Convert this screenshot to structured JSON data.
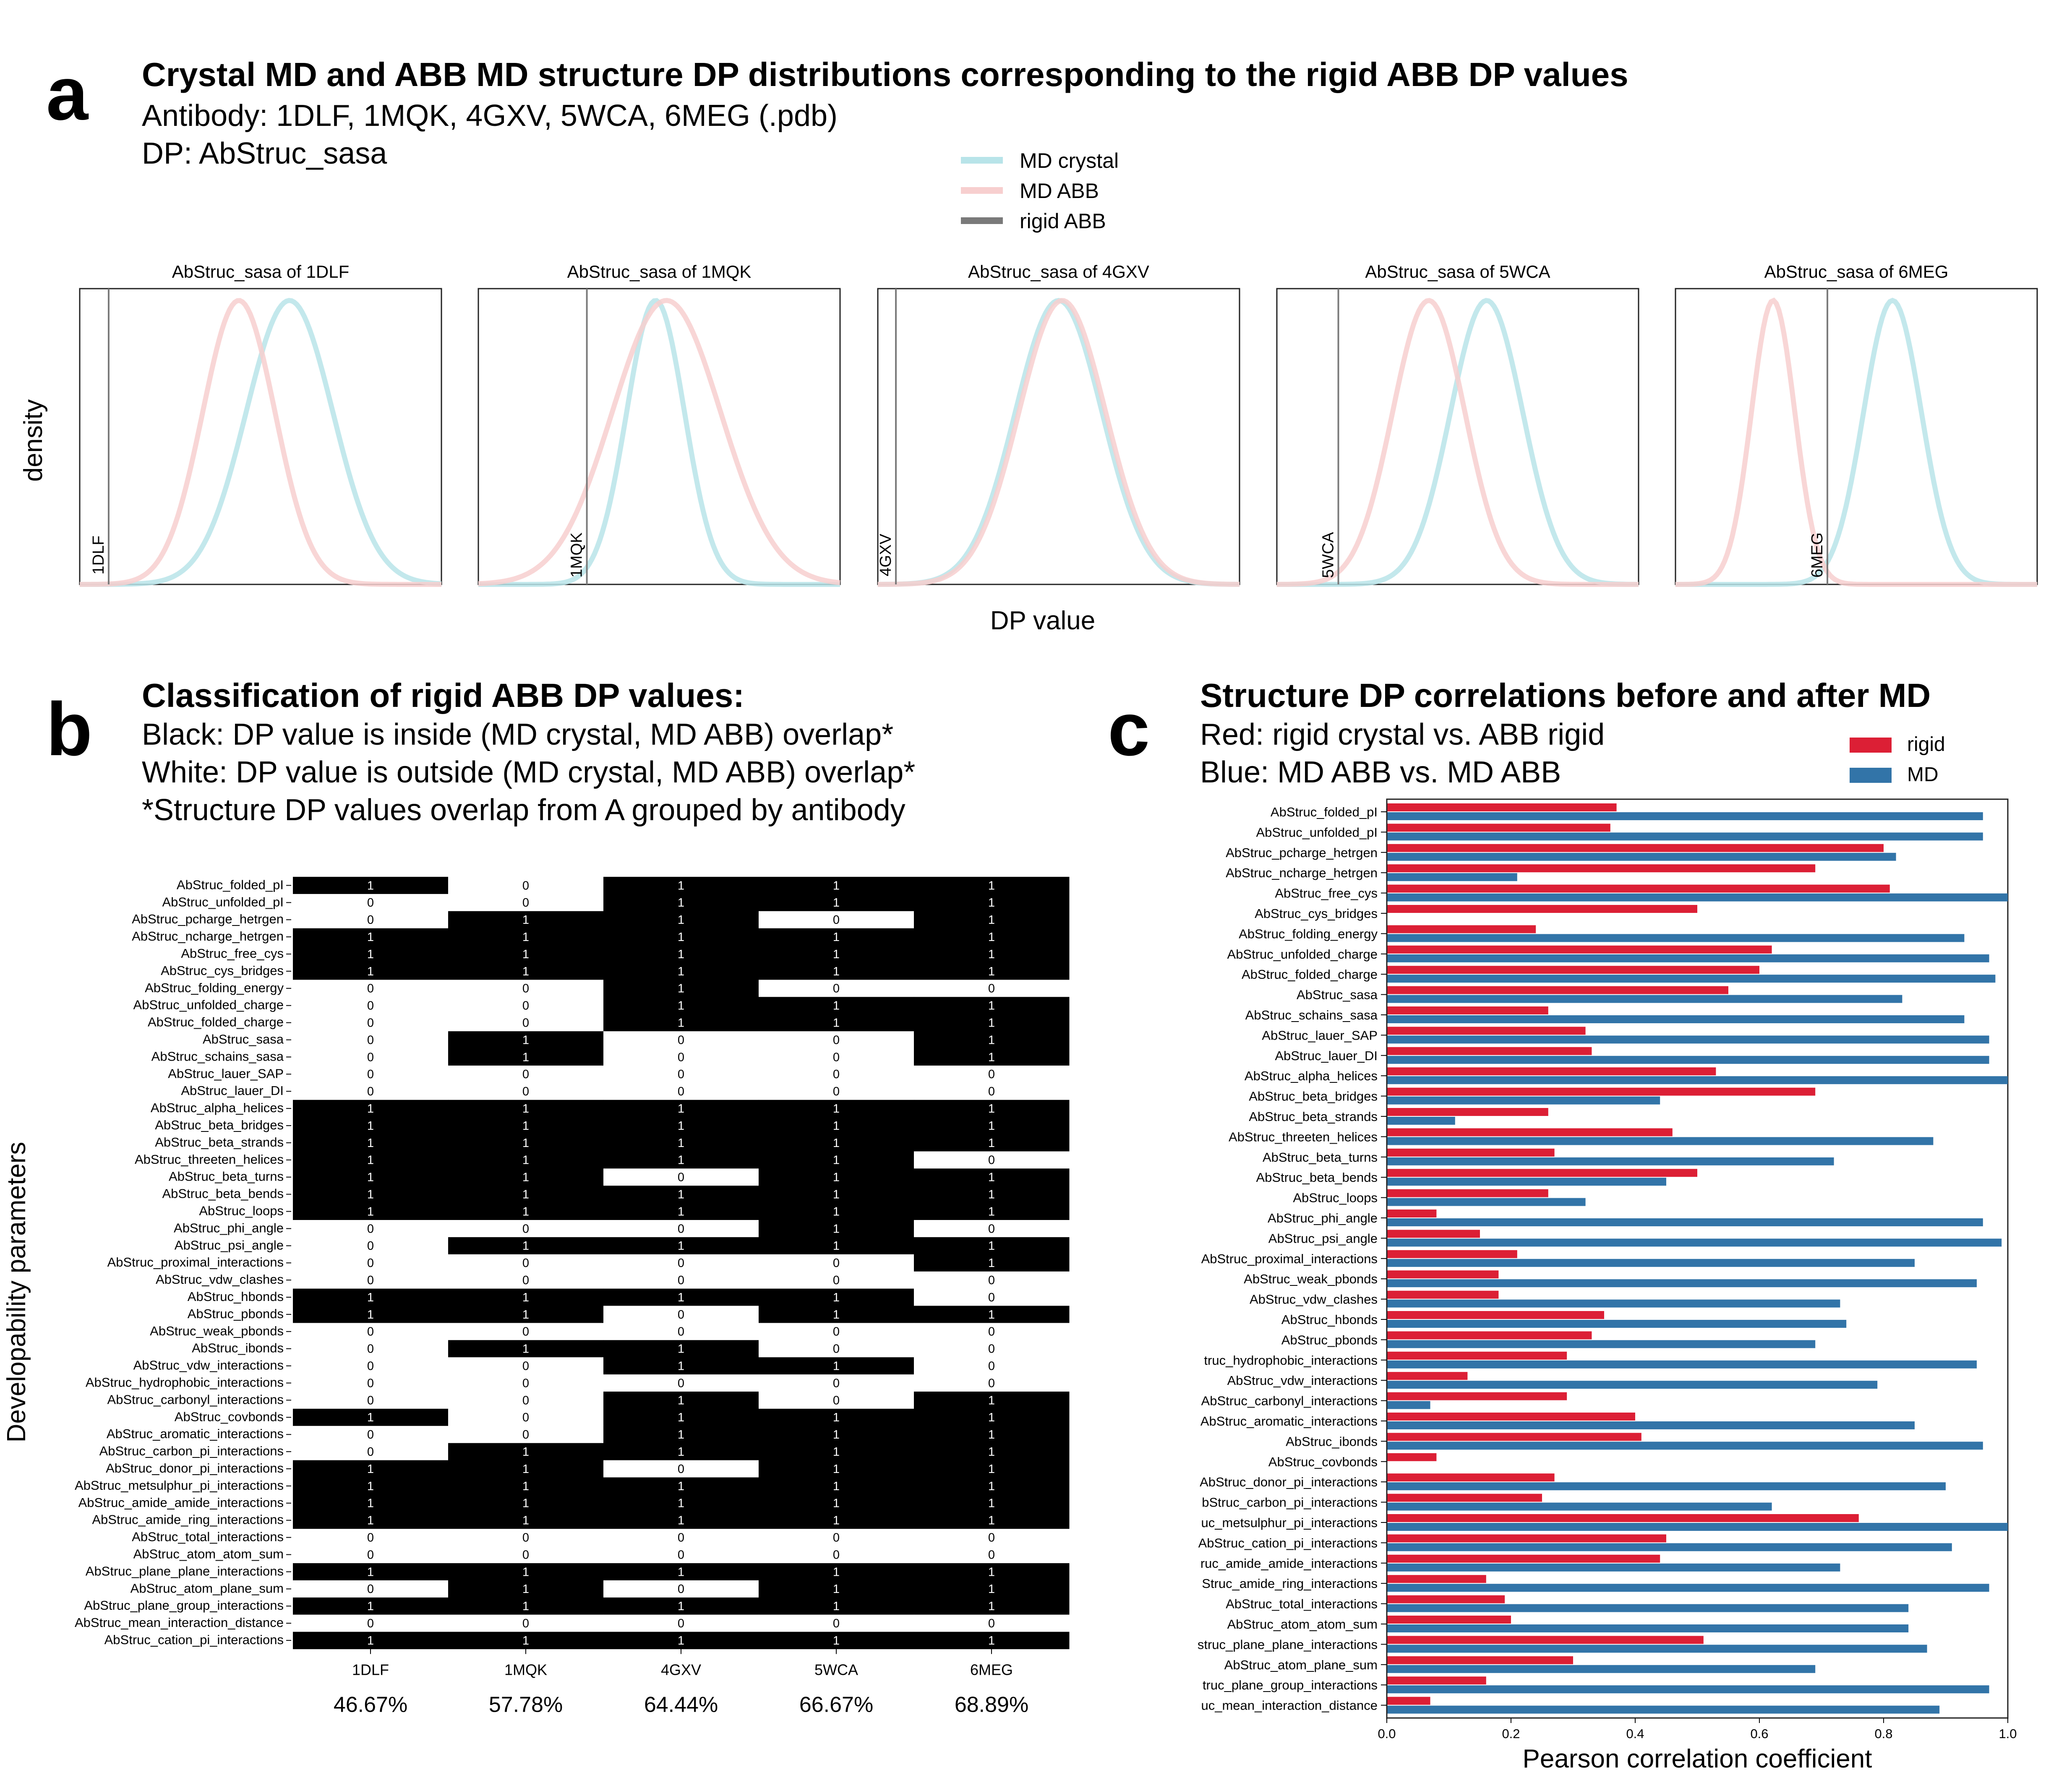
{
  "panel_a": {
    "letter": "a",
    "title": "Crystal MD and ABB MD structure DP distributions corresponding to the rigid ABB DP values",
    "subtitle1": "Antibody: 1DLF, 1MQK, 4GXV, 5WCA, 6MEG (.pdb)",
    "subtitle2": "DP: AbStruc_sasa",
    "ylabel": "density",
    "xlabel": "DP value",
    "legend": [
      {
        "label": "MD crystal",
        "color": "#b8e4e9"
      },
      {
        "label": "MD ABB",
        "color": "#f7cfcf"
      },
      {
        "label": "rigid ABB",
        "color": "#7a7a7a"
      }
    ]
  },
  "panel_b": {
    "letter": "b",
    "title": "Classification of rigid ABB DP values:",
    "line1": "Black: DP value is inside (MD crystal, MD ABB) overlap*",
    "line2": "White: DP value is outside (MD crystal, MD ABB) overlap*",
    "line3": "*Structure DP values overlap from A grouped by antibody",
    "ylabel": "Developability parameters"
  },
  "panel_c": {
    "letter": "c",
    "title": "Structure DP correlations before and after MD",
    "line1": "Red: rigid crystal vs. ABB rigid",
    "line2": "Blue: MD ABB vs. MD ABB"
  },
  "chart_data": [
    {
      "type": "line",
      "title": "AbStruc_sasa of 1DLF",
      "series": [
        {
          "name": "MD crystal",
          "color": "#b8e4e9",
          "peak": 0.58,
          "width": 0.12
        },
        {
          "name": "MD ABB",
          "color": "#f7cfcf",
          "peak": 0.44,
          "width": 0.1
        }
      ],
      "rigid_abb": {
        "label": "1DLF",
        "value": 0.08,
        "color": "#7a7a7a"
      }
    },
    {
      "type": "line",
      "title": "AbStruc_sasa of 1MQK",
      "series": [
        {
          "name": "MD crystal",
          "color": "#b8e4e9",
          "peak": 0.49,
          "width": 0.08
        },
        {
          "name": "MD ABB",
          "color": "#f7cfcf",
          "peak": 0.52,
          "width": 0.15
        }
      ],
      "rigid_abb": {
        "label": "1MQK",
        "value": 0.3,
        "color": "#7a7a7a"
      }
    },
    {
      "type": "line",
      "title": "AbStruc_sasa of 4GXV",
      "series": [
        {
          "name": "MD crystal",
          "color": "#b8e4e9",
          "peak": 0.5,
          "width": 0.12
        },
        {
          "name": "MD ABB",
          "color": "#f7cfcf",
          "peak": 0.51,
          "width": 0.12
        }
      ],
      "rigid_abb": {
        "label": "4GXV",
        "value": 0.05,
        "color": "#7a7a7a"
      }
    },
    {
      "type": "line",
      "title": "AbStruc_sasa of 5WCA",
      "series": [
        {
          "name": "MD crystal",
          "color": "#b8e4e9",
          "peak": 0.58,
          "width": 0.1
        },
        {
          "name": "MD ABB",
          "color": "#f7cfcf",
          "peak": 0.42,
          "width": 0.1
        }
      ],
      "rigid_abb": {
        "label": "5WCA",
        "value": 0.17,
        "color": "#7a7a7a"
      }
    },
    {
      "type": "line",
      "title": "AbStruc_sasa of 6MEG",
      "series": [
        {
          "name": "MD crystal",
          "color": "#b8e4e9",
          "peak": 0.6,
          "width": 0.08
        },
        {
          "name": "MD ABB",
          "color": "#f7cfcf",
          "peak": 0.27,
          "width": 0.06
        }
      ],
      "rigid_abb": {
        "label": "6MEG",
        "value": 0.42,
        "color": "#7a7a7a"
      }
    },
    {
      "type": "heatmap",
      "columns": [
        "1DLF",
        "1MQK",
        "4GXV",
        "5WCA",
        "6MEG"
      ],
      "column_percentages": [
        "46.67%",
        "57.78%",
        "64.44%",
        "66.67%",
        "68.89%"
      ],
      "rows": [
        "AbStruc_folded_pI",
        "AbStruc_unfolded_pI",
        "AbStruc_pcharge_hetrgen",
        "AbStruc_ncharge_hetrgen",
        "AbStruc_free_cys",
        "AbStruc_cys_bridges",
        "AbStruc_folding_energy",
        "AbStruc_unfolded_charge",
        "AbStruc_folded_charge",
        "AbStruc_sasa",
        "AbStruc_schains_sasa",
        "AbStruc_lauer_SAP",
        "AbStruc_lauer_DI",
        "AbStruc_alpha_helices",
        "AbStruc_beta_bridges",
        "AbStruc_beta_strands",
        "AbStruc_threeten_helices",
        "AbStruc_beta_turns",
        "AbStruc_beta_bends",
        "AbStruc_loops",
        "AbStruc_phi_angle",
        "AbStruc_psi_angle",
        "AbStruc_proximal_interactions",
        "AbStruc_vdw_clashes",
        "AbStruc_hbonds",
        "AbStruc_pbonds",
        "AbStruc_weak_pbonds",
        "AbStruc_ibonds",
        "AbStruc_vdw_interactions",
        "AbStruc_hydrophobic_interactions",
        "AbStruc_carbonyl_interactions",
        "AbStruc_covbonds",
        "AbStruc_aromatic_interactions",
        "AbStruc_carbon_pi_interactions",
        "AbStruc_donor_pi_interactions",
        "AbStruc_metsulphur_pi_interactions",
        "AbStruc_amide_amide_interactions",
        "AbStruc_amide_ring_interactions",
        "AbStruc_total_interactions",
        "AbStruc_atom_atom_sum",
        "AbStruc_plane_plane_interactions",
        "AbStruc_atom_plane_sum",
        "AbStruc_plane_group_interactions",
        "AbStruc_mean_interaction_distance",
        "AbStruc_cation_pi_interactions"
      ],
      "values": [
        [
          1,
          0,
          1,
          1,
          1
        ],
        [
          0,
          0,
          1,
          1,
          1
        ],
        [
          0,
          1,
          1,
          0,
          1
        ],
        [
          1,
          1,
          1,
          1,
          1
        ],
        [
          1,
          1,
          1,
          1,
          1
        ],
        [
          1,
          1,
          1,
          1,
          1
        ],
        [
          0,
          0,
          1,
          0,
          0
        ],
        [
          0,
          0,
          1,
          1,
          1
        ],
        [
          0,
          0,
          1,
          1,
          1
        ],
        [
          0,
          1,
          0,
          0,
          1
        ],
        [
          0,
          1,
          0,
          0,
          1
        ],
        [
          0,
          0,
          0,
          0,
          0
        ],
        [
          0,
          0,
          0,
          0,
          0
        ],
        [
          1,
          1,
          1,
          1,
          1
        ],
        [
          1,
          1,
          1,
          1,
          1
        ],
        [
          1,
          1,
          1,
          1,
          1
        ],
        [
          1,
          1,
          1,
          1,
          0
        ],
        [
          1,
          1,
          0,
          1,
          1
        ],
        [
          1,
          1,
          1,
          1,
          1
        ],
        [
          1,
          1,
          1,
          1,
          1
        ],
        [
          0,
          0,
          0,
          1,
          0
        ],
        [
          0,
          1,
          1,
          1,
          1
        ],
        [
          0,
          0,
          0,
          0,
          1
        ],
        [
          0,
          0,
          0,
          0,
          0
        ],
        [
          1,
          1,
          1,
          1,
          0
        ],
        [
          1,
          1,
          0,
          1,
          1
        ],
        [
          0,
          0,
          0,
          0,
          0
        ],
        [
          0,
          1,
          1,
          0,
          0
        ],
        [
          0,
          0,
          1,
          1,
          0
        ],
        [
          0,
          0,
          0,
          0,
          0
        ],
        [
          0,
          0,
          1,
          0,
          1
        ],
        [
          1,
          0,
          1,
          1,
          1
        ],
        [
          0,
          0,
          1,
          1,
          1
        ],
        [
          0,
          1,
          1,
          1,
          1
        ],
        [
          1,
          1,
          0,
          1,
          1
        ],
        [
          1,
          1,
          1,
          1,
          1
        ],
        [
          1,
          1,
          1,
          1,
          1
        ],
        [
          1,
          1,
          1,
          1,
          1
        ],
        [
          0,
          0,
          0,
          0,
          0
        ],
        [
          0,
          0,
          0,
          0,
          0
        ],
        [
          1,
          1,
          1,
          1,
          1
        ],
        [
          0,
          1,
          0,
          1,
          1
        ],
        [
          1,
          1,
          1,
          1,
          1
        ],
        [
          0,
          0,
          0,
          0,
          0
        ],
        [
          1,
          1,
          1,
          1,
          1
        ]
      ]
    },
    {
      "type": "bar",
      "orientation": "horizontal",
      "xlabel": "Pearson correlation coefficient",
      "xlim": [
        0,
        1.0
      ],
      "xticks": [
        "0.0",
        "0.2",
        "0.4",
        "0.6",
        "0.8",
        "1.0"
      ],
      "legend_position": "top-right",
      "categories": [
        "AbStruc_folded_pI",
        "AbStruc_unfolded_pI",
        "AbStruc_pcharge_hetrgen",
        "AbStruc_ncharge_hetrgen",
        "AbStruc_free_cys",
        "AbStruc_cys_bridges",
        "AbStruc_folding_energy",
        "AbStruc_unfolded_charge",
        "AbStruc_folded_charge",
        "AbStruc_sasa",
        "AbStruc_schains_sasa",
        "AbStruc_lauer_SAP",
        "AbStruc_lauer_DI",
        "AbStruc_alpha_helices",
        "AbStruc_beta_bridges",
        "AbStruc_beta_strands",
        "AbStruc_threeten_helices",
        "AbStruc_beta_turns",
        "AbStruc_beta_bends",
        "AbStruc_loops",
        "AbStruc_phi_angle",
        "AbStruc_psi_angle",
        "AbStruc_proximal_interactions",
        "AbStruc_weak_pbonds",
        "AbStruc_vdw_clashes",
        "AbStruc_hbonds",
        "AbStruc_pbonds",
        "truc_hydrophobic_interactions",
        "AbStruc_vdw_interactions",
        "AbStruc_carbonyl_interactions",
        "AbStruc_aromatic_interactions",
        "AbStruc_ibonds",
        "AbStruc_covbonds",
        "AbStruc_donor_pi_interactions",
        "bStruc_carbon_pi_interactions",
        "uc_metsulphur_pi_interactions",
        "AbStruc_cation_pi_interactions",
        "ruc_amide_amide_interactions",
        "Struc_amide_ring_interactions",
        "AbStruc_total_interactions",
        "AbStruc_atom_atom_sum",
        "struc_plane_plane_interactions",
        "AbStruc_atom_plane_sum",
        "truc_plane_group_interactions",
        "uc_mean_interaction_distance"
      ],
      "series": [
        {
          "name": "rigid",
          "color": "#dc1f35",
          "values": [
            0.37,
            0.36,
            0.8,
            0.69,
            0.81,
            0.5,
            0.24,
            0.62,
            0.6,
            0.55,
            0.26,
            0.32,
            0.33,
            0.53,
            0.69,
            0.26,
            0.46,
            0.27,
            0.5,
            0.26,
            0.08,
            0.15,
            0.21,
            0.18,
            0.18,
            0.35,
            0.33,
            0.29,
            0.13,
            0.29,
            0.4,
            0.41,
            0.08,
            0.27,
            0.25,
            0.76,
            0.45,
            0.44,
            0.16,
            0.19,
            0.2,
            0.51,
            0.3,
            0.16,
            0.07
          ]
        },
        {
          "name": "MD",
          "color": "#3274a8",
          "values": [
            0.96,
            0.96,
            0.82,
            0.21,
            1.0,
            0.0,
            0.93,
            0.97,
            0.98,
            0.83,
            0.93,
            0.97,
            0.97,
            1.0,
            0.44,
            0.11,
            0.88,
            0.72,
            0.45,
            0.32,
            0.96,
            0.99,
            0.85,
            0.95,
            0.73,
            0.74,
            0.69,
            0.95,
            0.79,
            0.07,
            0.85,
            0.96,
            0.0,
            0.9,
            0.62,
            1.0,
            0.91,
            0.73,
            0.97,
            0.84,
            0.84,
            0.87,
            0.69,
            0.97,
            0.89
          ]
        }
      ]
    }
  ]
}
